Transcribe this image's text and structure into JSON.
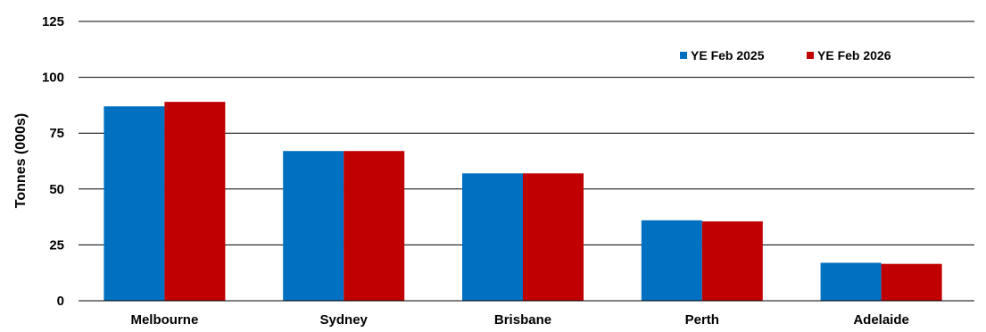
{
  "chart_data": {
    "type": "bar",
    "title": "",
    "xlabel": "",
    "ylabel": "Tonnes (000s)",
    "categories": [
      "Melbourne",
      "Sydney",
      "Brisbane",
      "Perth",
      "Adelaide"
    ],
    "series": [
      {
        "name": "YE Feb 2025",
        "color": "#0070C0",
        "values": [
          87,
          67,
          57,
          36,
          17
        ]
      },
      {
        "name": "YE Feb 2026",
        "color": "#C00000",
        "values": [
          89,
          67,
          57,
          35.5,
          16.5
        ]
      }
    ],
    "ylim": [
      0,
      125
    ],
    "yticks": [
      "0",
      "25",
      "50",
      "75",
      "100",
      "125"
    ],
    "grid": true,
    "legend_position": "top-right"
  }
}
